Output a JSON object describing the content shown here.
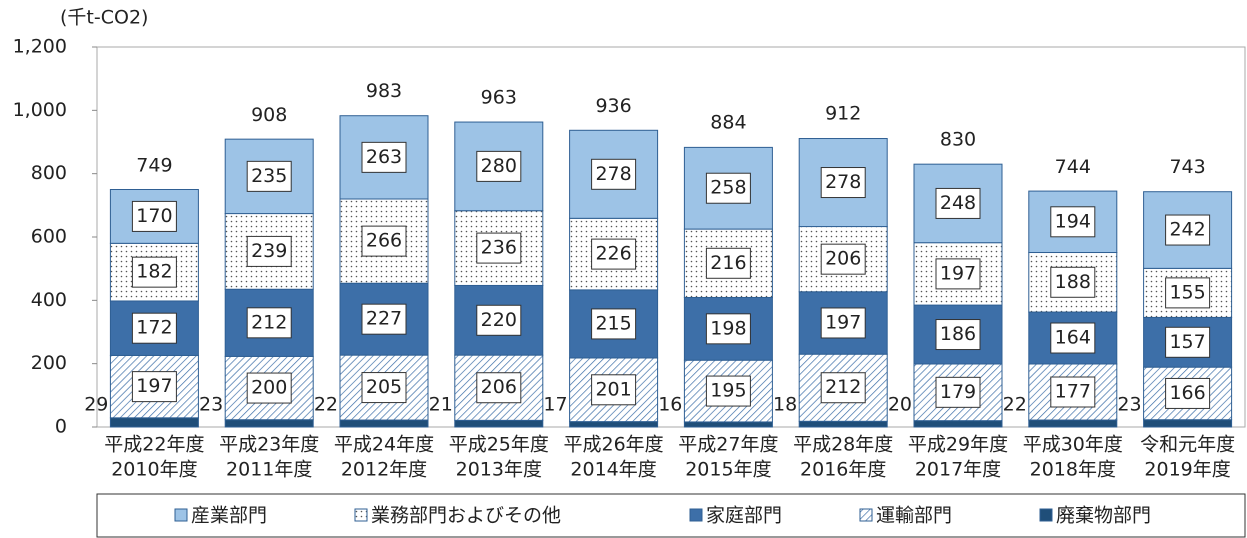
{
  "chart_data": {
    "type": "stacked_bar",
    "unit_label": "(千t-CO2)",
    "categories": [
      [
        "平成22年度",
        "2010年度"
      ],
      [
        "平成23年度",
        "2011年度"
      ],
      [
        "平成24年度",
        "2012年度"
      ],
      [
        "平成25年度",
        "2013年度"
      ],
      [
        "平成26年度",
        "2014年度"
      ],
      [
        "平成27年度",
        "2015年度"
      ],
      [
        "平成28年度",
        "2016年度"
      ],
      [
        "平成29年度",
        "2017年度"
      ],
      [
        "平成30年度",
        "2018年度"
      ],
      [
        "令和元年度",
        "2019年度"
      ]
    ],
    "series": [
      {
        "name": "廃棄物部門",
        "color": "#1f4e79",
        "values": [
          29,
          23,
          22,
          21,
          17,
          16,
          18,
          20,
          22,
          23
        ]
      },
      {
        "name": "運輸部門",
        "color": "#ffffff",
        "pattern": "hatch",
        "values": [
          197,
          200,
          205,
          206,
          201,
          195,
          212,
          179,
          177,
          166
        ]
      },
      {
        "name": "家庭部門",
        "color": "#3d6fa8",
        "values": [
          172,
          212,
          227,
          220,
          215,
          198,
          197,
          186,
          164,
          157
        ]
      },
      {
        "name": "業務部門およびその他",
        "color": "#ffffff",
        "pattern": "dots",
        "values": [
          182,
          239,
          266,
          236,
          226,
          216,
          206,
          197,
          188,
          155
        ]
      },
      {
        "name": "産業部門",
        "color": "#9dc3e6",
        "values": [
          170,
          235,
          263,
          280,
          278,
          258,
          278,
          248,
          194,
          242
        ]
      }
    ],
    "totals": [
      749,
      908,
      983,
      963,
      936,
      884,
      912,
      830,
      744,
      743
    ],
    "ylim": [
      0,
      1200
    ],
    "yticks": [
      0,
      200,
      400,
      600,
      800,
      {
        "value": 1000,
        "label": "1,000"
      },
      {
        "value": 1200,
        "label": "1,200"
      }
    ],
    "grid": false
  }
}
